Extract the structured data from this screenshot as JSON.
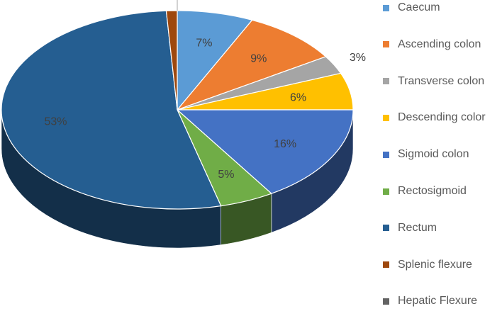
{
  "chart_data": {
    "type": "pie",
    "title": "",
    "style": "3d",
    "legend_position": "right",
    "categories": [
      "Caecum",
      "Ascending colon",
      "Transverse colon",
      "Descending color",
      "Sigmoid colon",
      "Rectosigmoid",
      "Rectum",
      "Splenic flexure",
      "Hepatic Flexure"
    ],
    "values": [
      7,
      9,
      3,
      6,
      16,
      5,
      53,
      1,
      0
    ],
    "labels": [
      "7%",
      "9%",
      "3%",
      "6%",
      "16%",
      "5%",
      "53%",
      "1%",
      "0%"
    ],
    "colors": [
      "#5B9BD5",
      "#ED7D31",
      "#A5A5A5",
      "#FFC000",
      "#4472C4",
      "#70AD47",
      "#255E91",
      "#9E480E",
      "#636363"
    ]
  }
}
